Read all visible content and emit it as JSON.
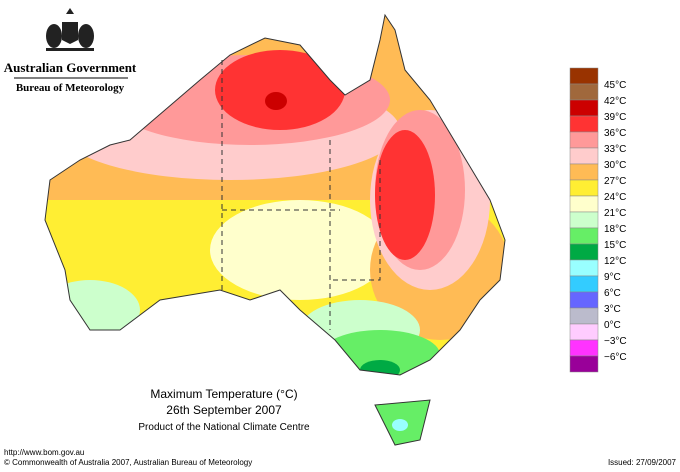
{
  "header": {
    "government": "Australian Government",
    "bureau": "Bureau of Meteorology"
  },
  "legend": {
    "labels": [
      "45°C",
      "42°C",
      "39°C",
      "36°C",
      "33°C",
      "30°C",
      "27°C",
      "24°C",
      "21°C",
      "18°C",
      "15°C",
      "12°C",
      "9°C",
      "6°C",
      "3°C",
      "0°C",
      "−3°C",
      "−6°C"
    ],
    "colors": [
      "#993300",
      "#a0683c",
      "#cc0000",
      "#ff3333",
      "#ff9999",
      "#ffcccc",
      "#ffbb55",
      "#ffee33",
      "#ffffcc",
      "#ccffcc",
      "#66ee66",
      "#00aa44",
      "#99ffff",
      "#33ccff",
      "#6666ff",
      "#bbbbcc",
      "#ffccff",
      "#ff33ff",
      "#990099"
    ]
  },
  "title": {
    "line1": "Maximum Temperature (°C)",
    "line2": "26th September 2007",
    "line3": "Product of the National Climate Centre"
  },
  "footer": {
    "url": "http://www.bom.gov.au",
    "copyright": "© Commonwealth of Australia 2007, Australian Bureau of Meteorology",
    "issued": "Issued: 27/09/2007"
  }
}
